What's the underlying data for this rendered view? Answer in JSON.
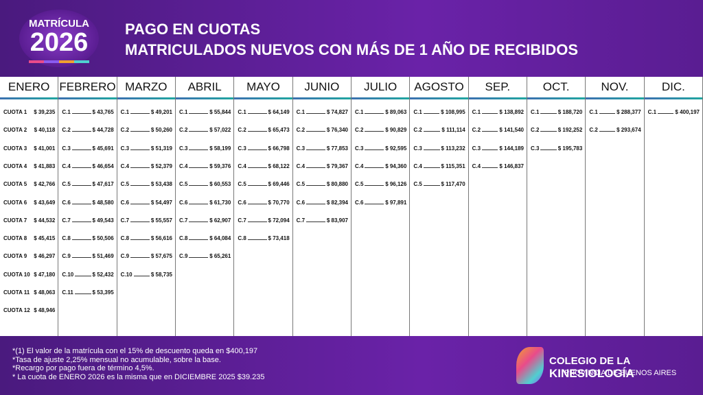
{
  "header": {
    "badge_top": "MATRÍCULA",
    "badge_year": "2026",
    "title_line1": "PAGO EN CUOTAS",
    "title_line2": "MATRICULADOS NUEVOS CON MÁS DE 1 AÑO DE RECIBIDOS"
  },
  "table": {
    "columns": [
      {
        "header": "ENERO",
        "rows": [
          [
            "CUOTA 1",
            "$ 39,235"
          ],
          [
            "CUOTA 2",
            "$ 40,118"
          ],
          [
            "CUOTA 3",
            "$ 41,001"
          ],
          [
            "CUOTA 4",
            "$ 41,883"
          ],
          [
            "CUOTA 5",
            "$ 42,766"
          ],
          [
            "CUOTA 6",
            "$ 43,649"
          ],
          [
            "CUOTA 7",
            "$ 44,532"
          ],
          [
            "CUOTA 8",
            "$ 45,415"
          ],
          [
            "CUOTA 9",
            "$ 46,297"
          ],
          [
            "CUOTA 10",
            "$ 47,180"
          ],
          [
            "CUOTA 11",
            "$ 48,063"
          ],
          [
            "CUOTA 12",
            "$ 48,946"
          ]
        ]
      },
      {
        "header": "FEBRERO",
        "rows": [
          [
            "C.1",
            "$ 43,765"
          ],
          [
            "C.2",
            "$ 44,728"
          ],
          [
            "C.3",
            "$ 45,691"
          ],
          [
            "C.4",
            "$ 46,654"
          ],
          [
            "C.5",
            "$ 47,617"
          ],
          [
            "C.6",
            "$ 48,580"
          ],
          [
            "C.7",
            "$ 49,543"
          ],
          [
            "C.8",
            "$ 50,506"
          ],
          [
            "C.9",
            "$ 51,469"
          ],
          [
            "C.10",
            "$ 52,432"
          ],
          [
            "C.11",
            "$ 53,395"
          ]
        ]
      },
      {
        "header": "MARZO",
        "rows": [
          [
            "C.1",
            "$ 49,201"
          ],
          [
            "C.2",
            "$ 50,260"
          ],
          [
            "C.3",
            "$ 51,319"
          ],
          [
            "C.4",
            "$ 52,379"
          ],
          [
            "C.5",
            "$ 53,438"
          ],
          [
            "C.6",
            "$ 54,497"
          ],
          [
            "C.7",
            "$ 55,557"
          ],
          [
            "C.8",
            "$ 56,616"
          ],
          [
            "C.9",
            "$ 57,675"
          ],
          [
            "C.10",
            "$ 58,735"
          ]
        ]
      },
      {
        "header": "ABRIL",
        "rows": [
          [
            "C.1",
            "$ 55,844"
          ],
          [
            "C.2",
            "$ 57,022"
          ],
          [
            "C.3",
            "$ 58,199"
          ],
          [
            "C.4",
            "$ 59,376"
          ],
          [
            "C.5",
            "$ 60,553"
          ],
          [
            "C.6",
            "$ 61,730"
          ],
          [
            "C.7",
            "$ 62,907"
          ],
          [
            "C.8",
            "$ 64,084"
          ],
          [
            "C.9",
            "$ 65,261"
          ]
        ]
      },
      {
        "header": "MAYO",
        "rows": [
          [
            "C.1",
            "$ 64,149"
          ],
          [
            "C.2",
            "$ 65,473"
          ],
          [
            "C.3",
            "$ 66,798"
          ],
          [
            "C.4",
            "$ 68,122"
          ],
          [
            "C.5",
            "$ 69,446"
          ],
          [
            "C.6",
            "$ 70,770"
          ],
          [
            "C.7",
            "$ 72,094"
          ],
          [
            "C.8",
            "$ 73,418"
          ]
        ]
      },
      {
        "header": "JUNIO",
        "rows": [
          [
            "C.1",
            "$ 74,827"
          ],
          [
            "C.2",
            "$ 76,340"
          ],
          [
            "C.3",
            "$ 77,853"
          ],
          [
            "C.4",
            "$ 79,367"
          ],
          [
            "C.5",
            "$ 80,880"
          ],
          [
            "C.6",
            "$ 82,394"
          ],
          [
            "C.7",
            "$ 83,907"
          ]
        ]
      },
      {
        "header": "JULIO",
        "rows": [
          [
            "C.1",
            "$ 89,063"
          ],
          [
            "C.2",
            "$ 90,829"
          ],
          [
            "C.3",
            "$ 92,595"
          ],
          [
            "C.4",
            "$ 94,360"
          ],
          [
            "C.5",
            "$ 96,126"
          ],
          [
            "C.6",
            "$ 97,891"
          ]
        ]
      },
      {
        "header": "AGOSTO",
        "rows": [
          [
            "C.1",
            "$ 108,995"
          ],
          [
            "C.2",
            "$ 111,114"
          ],
          [
            "C.3",
            "$ 113,232"
          ],
          [
            "C.4",
            "$ 115,351"
          ],
          [
            "C.5",
            "$ 117,470"
          ]
        ]
      },
      {
        "header": "SEP.",
        "rows": [
          [
            "C.1",
            "$ 138,892"
          ],
          [
            "C.2",
            "$ 141,540"
          ],
          [
            "C.3",
            "$ 144,189"
          ],
          [
            "C.4",
            "$ 146,837"
          ]
        ]
      },
      {
        "header": "OCT.",
        "rows": [
          [
            "C.1",
            "$ 188,720"
          ],
          [
            "C.2",
            "$ 192,252"
          ],
          [
            "C.3",
            "$ 195,783"
          ]
        ]
      },
      {
        "header": "NOV.",
        "rows": [
          [
            "C.1",
            "$ 288,377"
          ],
          [
            "C.2",
            "$ 293,674"
          ]
        ]
      },
      {
        "header": "DIC.",
        "rows": [
          [
            "C.1",
            "$ 400,197"
          ]
        ]
      }
    ]
  },
  "notes": [
    "*(1) El valor de la matrícula con el 15% de descuento queda en $400,197",
    "*Tasa de ajuste 2,25% mensual no acumulable, sobre la base.",
    "*Recargo por pago fuera de término 4,5%.",
    "* La cuota de ENERO 2026 es la misma que en DICIEMBRE 2025 $39.235"
  ],
  "logo": {
    "line1": "COLEGIO DE LA",
    "line1_bold": "KINESIOLOGÍA",
    "line2": "PROVINCIA DE BUENOS AIRES"
  }
}
